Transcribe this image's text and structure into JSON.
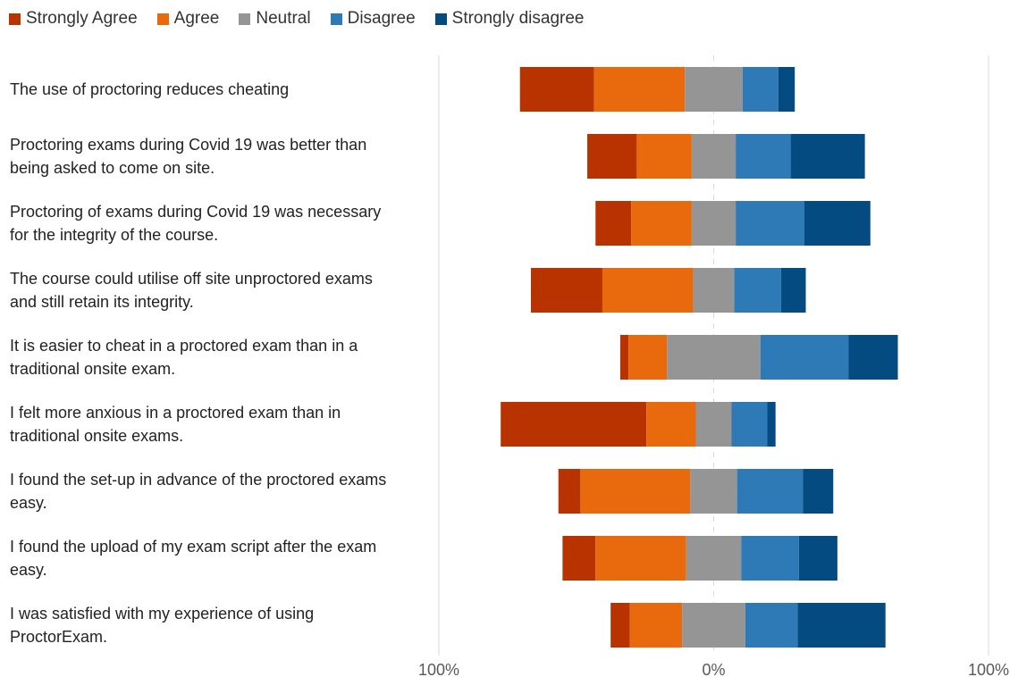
{
  "chart_data": {
    "type": "bar",
    "orientation": "horizontal",
    "stacking": "diverging",
    "categories": [
      [
        "The use of proctoring reduces cheating"
      ],
      [
        "Proctoring exams during Covid 19 was better than",
        "being asked to come on site."
      ],
      [
        "Proctoring of exams during Covid 19 was necessary",
        "for the integrity of the course."
      ],
      [
        "The course could utilise off site unproctored exams",
        "and still retain its integrity."
      ],
      [
        "It is easier to cheat in a proctored exam than in a",
        "traditional onsite exam."
      ],
      [
        "I felt more anxious in a proctored exam than in",
        "traditional onsite exams."
      ],
      [
        "I found the set-up in advance of the proctored exams",
        "easy."
      ],
      [
        "I found the upload of my exam script after the exam",
        "easy."
      ],
      [
        "I was satisfied with my experience of using",
        "ProctorExam."
      ]
    ],
    "series": [
      {
        "name": "Strongly Agree",
        "color": "#b83300",
        "values": [
          27,
          18,
          13,
          26,
          3,
          53,
          8,
          12,
          7
        ]
      },
      {
        "name": "Agree",
        "color": "#e86a0c",
        "values": [
          33,
          20,
          22,
          33,
          14,
          18,
          40,
          33,
          19
        ]
      },
      {
        "name": "Neutral",
        "color": "#959595",
        "values": [
          21,
          16,
          16,
          15,
          34,
          13,
          17,
          20,
          23
        ]
      },
      {
        "name": "Disagree",
        "color": "#2e7ab6",
        "values": [
          13,
          20,
          25,
          17,
          32,
          13,
          24,
          21,
          19
        ]
      },
      {
        "name": "Strongly disagree",
        "color": "#034b81",
        "values": [
          6,
          27,
          24,
          9,
          18,
          3,
          11,
          14,
          32
        ]
      }
    ],
    "neutral_index": 2,
    "x_ticks": [
      "100%",
      "0%",
      "100%"
    ],
    "xlim": [
      -100,
      100
    ],
    "legend_position": "top-left",
    "grid": "vertical"
  }
}
